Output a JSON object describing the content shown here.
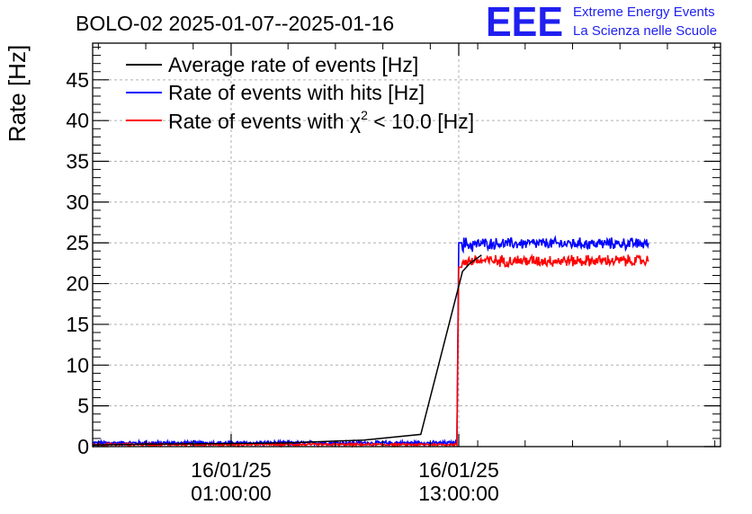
{
  "chart_data": {
    "type": "line",
    "title": "BOLO-02 2025-01-07--2025-01-16",
    "ylabel": "Rate [Hz]",
    "xlabel": "",
    "ylim": [
      0,
      49.5
    ],
    "xlim_hours": [
      -6.3,
      26.8
    ],
    "yticks": [
      0,
      5,
      10,
      15,
      20,
      25,
      30,
      35,
      40,
      45
    ],
    "xticks": [
      {
        "hour": 1,
        "date": "16/01/25",
        "time": "01:00:00"
      },
      {
        "hour": 13,
        "date": "16/01/25",
        "time": "13:00:00"
      }
    ],
    "grid": true,
    "legend_position": "top-left",
    "series": [
      {
        "name": "Average rate of events [Hz]",
        "color": "#000000",
        "points": [
          [
            -6.3,
            0.2
          ],
          [
            -3.5,
            0.3
          ],
          [
            0,
            0.35
          ],
          [
            4,
            0.45
          ],
          [
            8,
            0.8
          ],
          [
            11,
            1.5
          ],
          [
            13.2,
            21.5
          ],
          [
            13.6,
            22.5
          ],
          [
            14.2,
            23.5
          ]
        ]
      },
      {
        "name": "Rate of events with hits [Hz]",
        "color": "#0000ff",
        "segments": [
          {
            "x_start": -6.3,
            "x_end": 12.9,
            "base": 0.45,
            "noise": 0.2
          },
          {
            "x_start": 13.0,
            "x_end": 13.15,
            "base": 25.0,
            "noise": 0
          },
          {
            "x_start": 13.2,
            "x_end": 14.0,
            "base": 24.8,
            "noise": 0.8
          },
          {
            "x_start": 14.0,
            "x_end": 23.0,
            "base": 24.9,
            "noise": 0.6
          }
        ]
      },
      {
        "name": "Rate of events with χ² < 10.0 [Hz]",
        "color": "#ff0000",
        "segments": [
          {
            "x_start": -6.3,
            "x_end": 12.9,
            "base": 0.25,
            "noise": 0.12
          },
          {
            "x_start": 13.0,
            "x_end": 13.15,
            "base": 22.0,
            "noise": 0
          },
          {
            "x_start": 13.2,
            "x_end": 23.0,
            "base": 22.8,
            "noise": 0.6
          }
        ]
      }
    ]
  },
  "legend": {
    "entry_1": "Average rate of events [Hz]",
    "entry_2": "Rate of events with hits [Hz]",
    "entry_3_prefix": "Rate of events with ",
    "entry_3_chi": "χ",
    "entry_3_sup": "2",
    "entry_3_suffix": " < 10.0 [Hz]"
  },
  "logo": {
    "mark": "EEE",
    "line1": "Extreme Energy Events",
    "line2": "La Scienza nelle Scuole"
  },
  "colors": {
    "average": "#000000",
    "hits": "#0000ff",
    "chi2": "#ff0000",
    "logo": "#1f1ff0",
    "grid": "#b0b0b0"
  }
}
